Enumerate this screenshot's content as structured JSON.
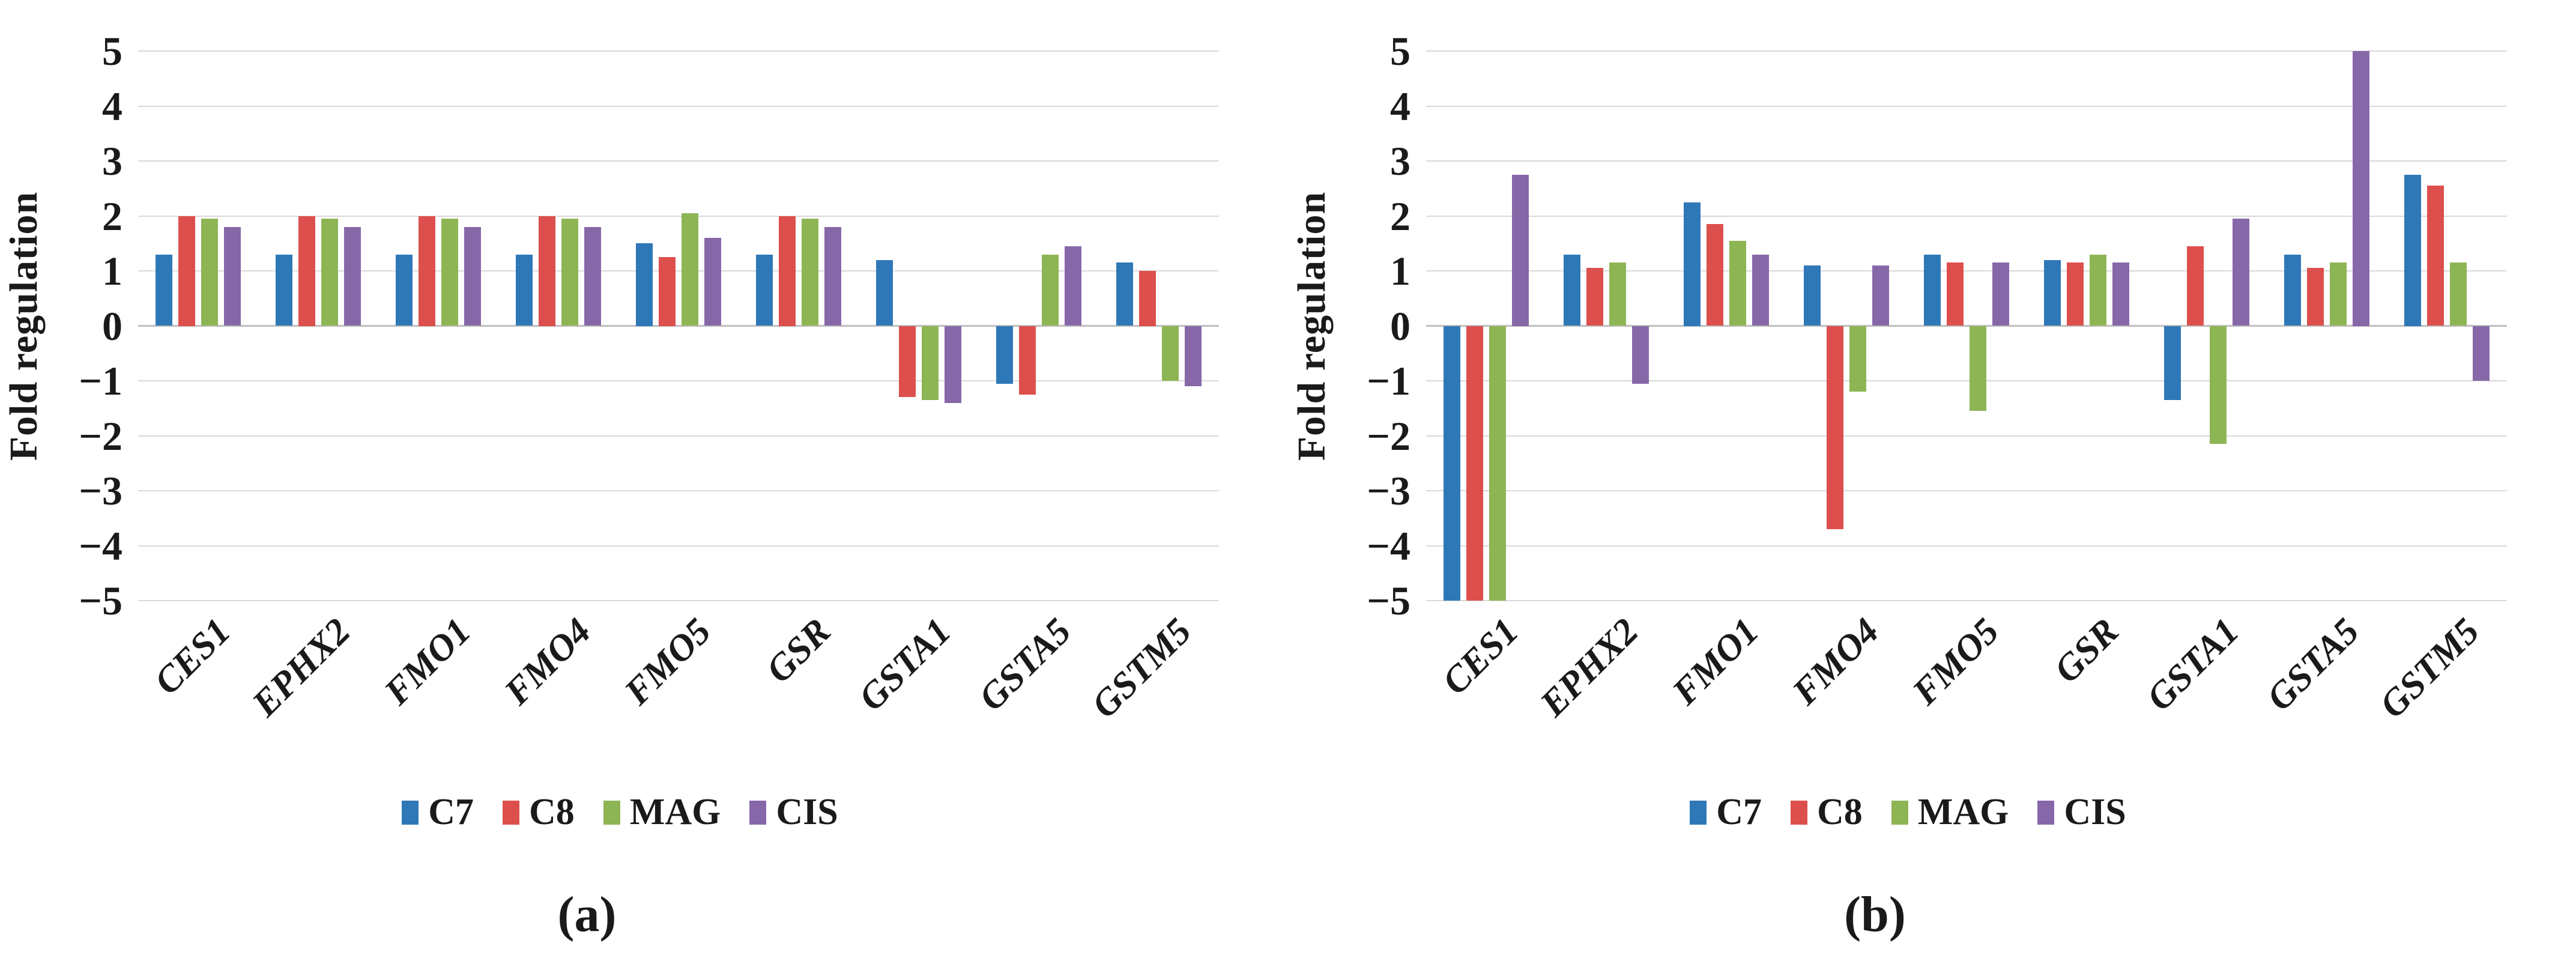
{
  "chart_data": [
    {
      "type": "bar",
      "panel": "a",
      "caption": "(a)",
      "title": "",
      "ylabel": "Fold regulation",
      "ylim": [
        -5,
        5
      ],
      "ytick_step": 1,
      "yticks": [
        "5",
        "4",
        "3",
        "2",
        "1",
        "0",
        "−1",
        "−2",
        "−3",
        "−4",
        "−5"
      ],
      "grid": true,
      "legend_position": "bottom",
      "categories": [
        "CES1",
        "EPHX2",
        "FMO1",
        "FMO4",
        "FMO5",
        "GSR",
        "GSTA1",
        "GSTA5",
        "GSTM5"
      ],
      "series": [
        {
          "name": "C7",
          "color": "#2E78B8",
          "values": [
            1.3,
            1.3,
            1.3,
            1.3,
            1.5,
            1.3,
            1.2,
            -1.05,
            1.15
          ]
        },
        {
          "name": "C8",
          "color": "#DC4F4D",
          "values": [
            2.0,
            2.0,
            2.0,
            2.0,
            1.25,
            2.0,
            -1.3,
            -1.25,
            1.0
          ]
        },
        {
          "name": "MAG",
          "color": "#8DB554",
          "values": [
            1.95,
            1.95,
            1.95,
            1.95,
            2.05,
            1.95,
            -1.35,
            1.3,
            -1.0
          ]
        },
        {
          "name": "CIS",
          "color": "#8668A9",
          "values": [
            1.8,
            1.8,
            1.8,
            1.8,
            1.6,
            1.8,
            -1.4,
            1.45,
            -1.1
          ]
        }
      ]
    },
    {
      "type": "bar",
      "panel": "b",
      "caption": "(b)",
      "title": "",
      "ylabel": "Fold regulation",
      "ylim": [
        -5,
        5
      ],
      "ytick_step": 1,
      "yticks": [
        "5",
        "4",
        "3",
        "2",
        "1",
        "0",
        "−1",
        "−2",
        "−3",
        "−4",
        "−5"
      ],
      "grid": true,
      "legend_position": "bottom",
      "categories": [
        "CES1",
        "EPHX2",
        "FMO1",
        "FMO4",
        "FMO5",
        "GSR",
        "GSTA1",
        "GSTA5",
        "GSTM5"
      ],
      "series": [
        {
          "name": "C7",
          "color": "#2E78B8",
          "values": [
            -5,
            1.3,
            2.25,
            1.1,
            1.3,
            1.2,
            -1.35,
            1.3,
            2.75
          ]
        },
        {
          "name": "C8",
          "color": "#DC4F4D",
          "values": [
            -5,
            1.05,
            1.85,
            -3.7,
            1.15,
            1.15,
            1.45,
            1.05,
            2.55
          ]
        },
        {
          "name": "MAG",
          "color": "#8DB554",
          "values": [
            -5,
            1.15,
            1.55,
            -1.2,
            -1.55,
            1.3,
            -2.15,
            1.15,
            1.15
          ]
        },
        {
          "name": "CIS",
          "color": "#8668A9",
          "values": [
            2.75,
            -1.05,
            1.3,
            1.1,
            1.15,
            1.15,
            1.95,
            5,
            -1.0
          ]
        }
      ]
    }
  ]
}
